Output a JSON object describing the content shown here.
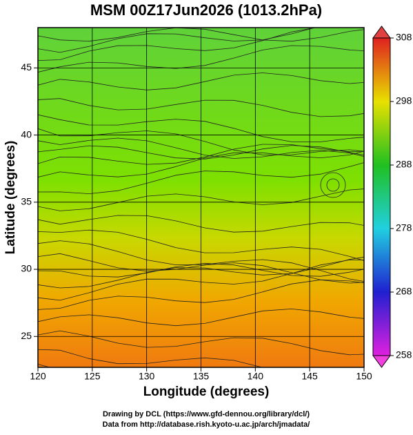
{
  "title": "MSM 00Z17Jun2026 (1013.2hPa)",
  "map": {
    "xlabel": "Longitude (degrees)",
    "ylabel": "Latitude  (degrees)",
    "xlim": [
      120,
      150
    ],
    "ylim": [
      22.7,
      48
    ],
    "xticks": [
      120,
      125,
      130,
      135,
      140,
      145,
      150
    ],
    "yticks": [
      25,
      30,
      35,
      40,
      45
    ]
  },
  "colorbar": {
    "lim": [
      258,
      308
    ],
    "ticks": [
      258,
      268,
      278,
      288,
      298,
      308
    ]
  },
  "footer": [
    "Drawing by DCL (https://www.gfd-dennou.org/library/dcl/)",
    "Data from http://database.rish.kyoto-u.ac.jp/arch/jmadata/"
  ]
}
